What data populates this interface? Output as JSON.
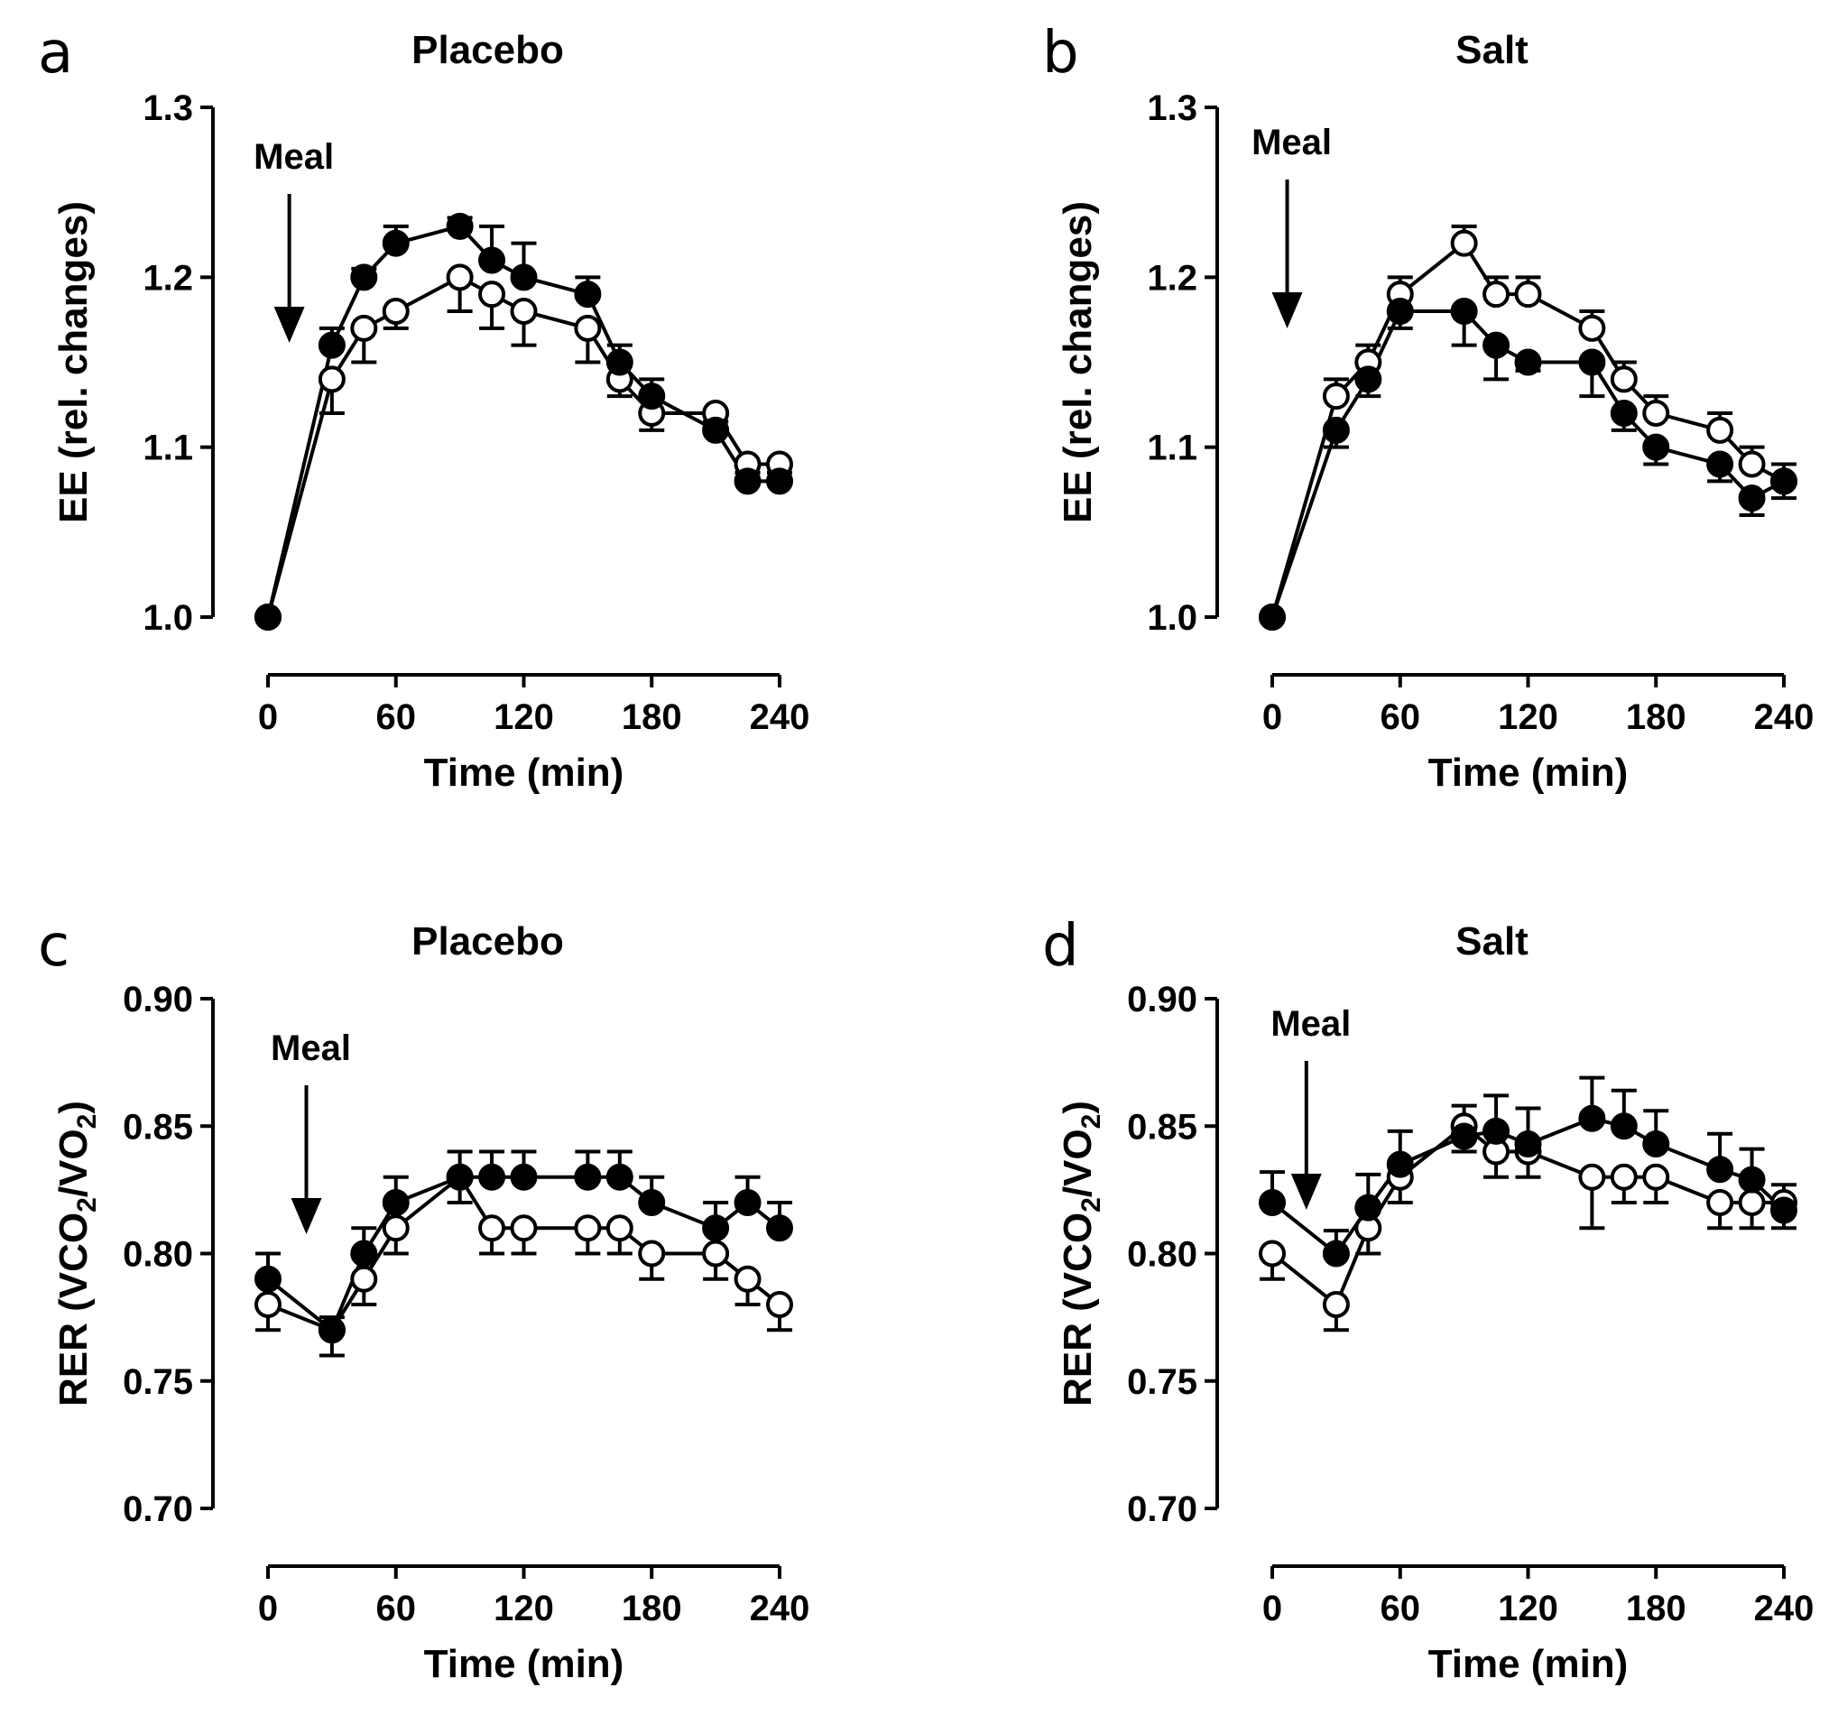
{
  "chart_data": [
    {
      "panel": "a",
      "type": "line",
      "title": "Placebo",
      "xlabel": "Time (min)",
      "ylabel": "EE (rel. changes)",
      "ylabel_parts": [
        "EE (rel. changes)"
      ],
      "xlim": [
        0,
        240
      ],
      "ylim": [
        1.0,
        1.3
      ],
      "xticks": [
        0,
        60,
        120,
        180,
        240
      ],
      "xtick_labels": [
        "0",
        "60",
        "120",
        "180",
        "240"
      ],
      "yticks": [
        1.0,
        1.1,
        1.2,
        1.3
      ],
      "ytick_labels": [
        "1.0",
        "1.1",
        "1.2",
        "1.3"
      ],
      "annotation": {
        "text": "Meal",
        "x": 10
      },
      "series": [
        {
          "name": "filled",
          "marker": "filled",
          "x": [
            0,
            30,
            45,
            60,
            90,
            105,
            120,
            150,
            165,
            180,
            210,
            225,
            240
          ],
          "y": [
            1.0,
            1.16,
            1.2,
            1.22,
            1.23,
            1.21,
            1.2,
            1.19,
            1.15,
            1.13,
            1.11,
            1.08,
            1.08
          ],
          "err": [
            0,
            0.01,
            0.005,
            0.01,
            0.005,
            0.02,
            0.02,
            0.01,
            0.01,
            0.01,
            0.005,
            0.005,
            0.005
          ],
          "err_dir": [
            0,
            1,
            1,
            1,
            1,
            1,
            1,
            1,
            1,
            1,
            1,
            1,
            1
          ]
        },
        {
          "name": "open",
          "marker": "open",
          "x": [
            0,
            30,
            45,
            60,
            90,
            105,
            120,
            150,
            165,
            180,
            210,
            225,
            240
          ],
          "y": [
            1.0,
            1.14,
            1.17,
            1.18,
            1.2,
            1.19,
            1.18,
            1.17,
            1.14,
            1.12,
            1.12,
            1.09,
            1.09
          ],
          "err": [
            0,
            0.02,
            0.02,
            0.01,
            0.02,
            0.02,
            0.02,
            0.02,
            0.01,
            0.01,
            0.005,
            0.005,
            0.005
          ],
          "err_dir": [
            0,
            -1,
            -1,
            -1,
            -1,
            -1,
            -1,
            -1,
            -1,
            -1,
            -1,
            -1,
            -1
          ]
        }
      ]
    },
    {
      "panel": "b",
      "type": "line",
      "title": "Salt",
      "xlabel": "Time (min)",
      "ylabel": "EE (rel. changes)",
      "ylabel_parts": [
        "EE (rel. changes)"
      ],
      "xlim": [
        0,
        240
      ],
      "ylim": [
        1.0,
        1.3
      ],
      "xticks": [
        0,
        60,
        120,
        180,
        240
      ],
      "xtick_labels": [
        "0",
        "60",
        "120",
        "180",
        "240"
      ],
      "yticks": [
        1.0,
        1.1,
        1.2,
        1.3
      ],
      "ytick_labels": [
        "1.0",
        "1.1",
        "1.2",
        "1.3"
      ],
      "annotation": {
        "text": "Meal",
        "x": 7
      },
      "series": [
        {
          "name": "filled",
          "marker": "filled",
          "x": [
            0,
            30,
            45,
            60,
            90,
            105,
            120,
            150,
            165,
            180,
            210,
            225,
            240
          ],
          "y": [
            1.0,
            1.11,
            1.14,
            1.18,
            1.18,
            1.16,
            1.15,
            1.15,
            1.12,
            1.1,
            1.09,
            1.07,
            1.08
          ],
          "err": [
            0,
            0.01,
            0.01,
            0.01,
            0.02,
            0.02,
            0.005,
            0.02,
            0.01,
            0.01,
            0.01,
            0.01,
            0.01
          ],
          "err_dir": [
            0,
            -1,
            -1,
            -1,
            -1,
            -1,
            -1,
            -1,
            -1,
            -1,
            -1,
            -1,
            -1
          ]
        },
        {
          "name": "open",
          "marker": "open",
          "x": [
            0,
            30,
            45,
            60,
            90,
            105,
            120,
            150,
            165,
            180,
            210,
            225,
            240
          ],
          "y": [
            1.0,
            1.13,
            1.15,
            1.19,
            1.22,
            1.19,
            1.19,
            1.17,
            1.14,
            1.12,
            1.11,
            1.09,
            1.08
          ],
          "err": [
            0,
            0.01,
            0.01,
            0.01,
            0.01,
            0.01,
            0.01,
            0.01,
            0.01,
            0.01,
            0.01,
            0.01,
            0.01
          ],
          "err_dir": [
            0,
            1,
            1,
            1,
            1,
            1,
            1,
            1,
            1,
            1,
            1,
            1,
            1
          ]
        }
      ]
    },
    {
      "panel": "c",
      "type": "line",
      "title": "Placebo",
      "xlabel": "Time (min)",
      "ylabel": "RER (VCO2/VO2)",
      "ylabel_parts": [
        "RER (VCO",
        "2",
        "/VO",
        "2",
        ")"
      ],
      "xlim": [
        0,
        240
      ],
      "ylim": [
        0.7,
        0.9
      ],
      "xticks": [
        0,
        60,
        120,
        180,
        240
      ],
      "xtick_labels": [
        "0",
        "60",
        "120",
        "180",
        "240"
      ],
      "yticks": [
        0.7,
        0.75,
        0.8,
        0.85,
        0.9
      ],
      "ytick_labels": [
        "0.70",
        "0.75",
        "0.80",
        "0.85",
        "0.90"
      ],
      "annotation": {
        "text": "Meal",
        "x": 18
      },
      "series": [
        {
          "name": "filled",
          "marker": "filled",
          "x": [
            0,
            30,
            45,
            60,
            90,
            105,
            120,
            150,
            165,
            180,
            210,
            225,
            240
          ],
          "y": [
            0.79,
            0.77,
            0.8,
            0.82,
            0.83,
            0.83,
            0.83,
            0.83,
            0.83,
            0.82,
            0.81,
            0.82,
            0.81
          ],
          "err": [
            0.01,
            0.005,
            0.01,
            0.01,
            0.01,
            0.01,
            0.01,
            0.01,
            0.01,
            0.01,
            0.01,
            0.01,
            0.01
          ],
          "err_dir": [
            1,
            1,
            1,
            1,
            1,
            1,
            1,
            1,
            1,
            1,
            1,
            1,
            1
          ]
        },
        {
          "name": "open",
          "marker": "open",
          "x": [
            0,
            30,
            45,
            60,
            90,
            105,
            120,
            150,
            165,
            180,
            210,
            225,
            240
          ],
          "y": [
            0.78,
            0.77,
            0.79,
            0.81,
            0.83,
            0.81,
            0.81,
            0.81,
            0.81,
            0.8,
            0.8,
            0.79,
            0.78
          ],
          "err": [
            0.01,
            0.01,
            0.01,
            0.01,
            0.01,
            0.01,
            0.01,
            0.01,
            0.01,
            0.01,
            0.01,
            0.01,
            0.01
          ],
          "err_dir": [
            -1,
            -1,
            -1,
            -1,
            -1,
            -1,
            -1,
            -1,
            -1,
            -1,
            -1,
            -1,
            -1
          ]
        }
      ]
    },
    {
      "panel": "d",
      "type": "line",
      "title": "Salt",
      "xlabel": "Time (min)",
      "ylabel": "RER (VCO2/VO2)",
      "ylabel_parts": [
        "RER (VCO",
        "2",
        "/VO",
        "2",
        ")"
      ],
      "xlim": [
        0,
        240
      ],
      "ylim": [
        0.7,
        0.9
      ],
      "xticks": [
        0,
        60,
        120,
        180,
        240
      ],
      "xtick_labels": [
        "0",
        "60",
        "120",
        "180",
        "240"
      ],
      "yticks": [
        0.7,
        0.75,
        0.8,
        0.85,
        0.9
      ],
      "ytick_labels": [
        "0.70",
        "0.75",
        "0.80",
        "0.85",
        "0.90"
      ],
      "annotation": {
        "text": "Meal",
        "x": 16
      },
      "series": [
        {
          "name": "filled",
          "marker": "filled",
          "x": [
            0,
            30,
            45,
            60,
            90,
            105,
            120,
            150,
            165,
            180,
            210,
            225,
            240
          ],
          "y": [
            0.82,
            0.8,
            0.818,
            0.835,
            0.846,
            0.848,
            0.843,
            0.853,
            0.85,
            0.843,
            0.833,
            0.829,
            0.817
          ],
          "err": [
            0.012,
            0.009,
            0.013,
            0.013,
            0.012,
            0.014,
            0.014,
            0.016,
            0.014,
            0.013,
            0.014,
            0.012,
            0.01
          ],
          "err_dir": [
            1,
            1,
            1,
            1,
            1,
            1,
            1,
            1,
            1,
            1,
            1,
            1,
            1
          ]
        },
        {
          "name": "open",
          "marker": "open",
          "x": [
            0,
            30,
            45,
            60,
            90,
            105,
            120,
            150,
            165,
            180,
            210,
            225,
            240
          ],
          "y": [
            0.8,
            0.78,
            0.81,
            0.83,
            0.85,
            0.84,
            0.84,
            0.83,
            0.83,
            0.83,
            0.82,
            0.82,
            0.82
          ],
          "err": [
            0.01,
            0.01,
            0.01,
            0.01,
            0.01,
            0.01,
            0.01,
            0.02,
            0.01,
            0.01,
            0.01,
            0.01,
            0.01
          ],
          "err_dir": [
            -1,
            -1,
            -1,
            -1,
            -1,
            -1,
            -1,
            -1,
            -1,
            -1,
            -1,
            -1,
            -1
          ]
        }
      ]
    }
  ]
}
